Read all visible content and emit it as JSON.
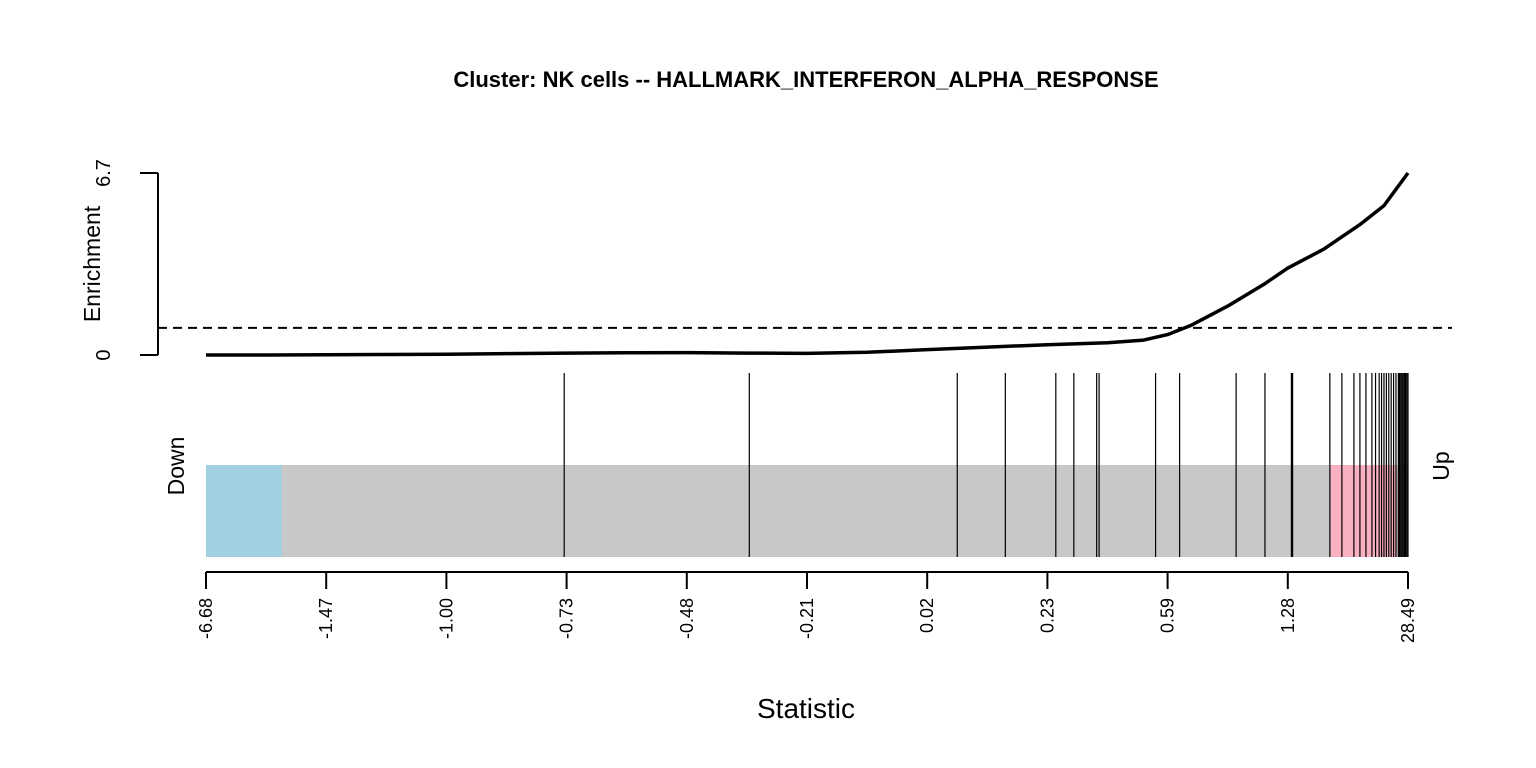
{
  "chart_data": {
    "type": "line",
    "title": "Cluster: NK cells -- HALLMARK_INTERFERON_ALPHA_RESPONSE",
    "xlabel": "Statistic",
    "ylabel": "Enrichment",
    "y_ticks": [
      "0",
      "6.7"
    ],
    "ylim": [
      0,
      6.7
    ],
    "x_ticks": [
      "-6.68",
      "-1.47",
      "-1.00",
      "-0.73",
      "-0.48",
      "-0.21",
      "0.02",
      "0.23",
      "0.59",
      "1.28",
      "28.49"
    ],
    "x_tick_ranks": [
      0,
      0.1,
      0.2,
      0.3,
      0.4,
      0.5,
      0.6,
      0.7,
      0.8,
      0.9,
      1.0
    ],
    "reference_line": 1.0,
    "series": [
      {
        "x": [
          0,
          0.05,
          0.1,
          0.15,
          0.2,
          0.25,
          0.3,
          0.35,
          0.4,
          0.45,
          0.5,
          0.55,
          0.6,
          0.65,
          0.7,
          0.75,
          0.78,
          0.8,
          0.82,
          0.85,
          0.88,
          0.9,
          0.93,
          0.96,
          0.98,
          1.0
        ],
        "values": [
          0,
          0.0,
          0.01,
          0.02,
          0.03,
          0.05,
          0.07,
          0.08,
          0.09,
          0.07,
          0.06,
          0.1,
          0.2,
          0.29,
          0.38,
          0.45,
          0.55,
          0.75,
          1.1,
          1.8,
          2.6,
          3.2,
          3.9,
          4.8,
          5.5,
          6.7
        ]
      }
    ],
    "barcode": {
      "down_label": "Down",
      "up_label": "Up",
      "down_region": [
        0,
        0.063
      ],
      "up_region": [
        0.935,
        0.99
      ],
      "colors": {
        "down": "#a1d0e0",
        "middle": "#c8c8c8",
        "up": "#f9b0c0"
      },
      "gene_ranks": [
        0.298,
        0.452,
        0.625,
        0.665,
        0.707,
        0.722,
        0.741,
        0.743,
        0.79,
        0.81,
        0.857,
        0.881,
        0.903,
        0.904,
        0.935,
        0.945,
        0.955,
        0.96,
        0.965,
        0.97,
        0.973,
        0.976,
        0.978,
        0.98,
        0.982,
        0.984,
        0.986,
        0.988,
        0.99,
        0.992,
        0.993,
        0.994,
        0.995,
        0.996,
        0.997,
        0.998,
        0.999,
        1.0
      ]
    }
  }
}
